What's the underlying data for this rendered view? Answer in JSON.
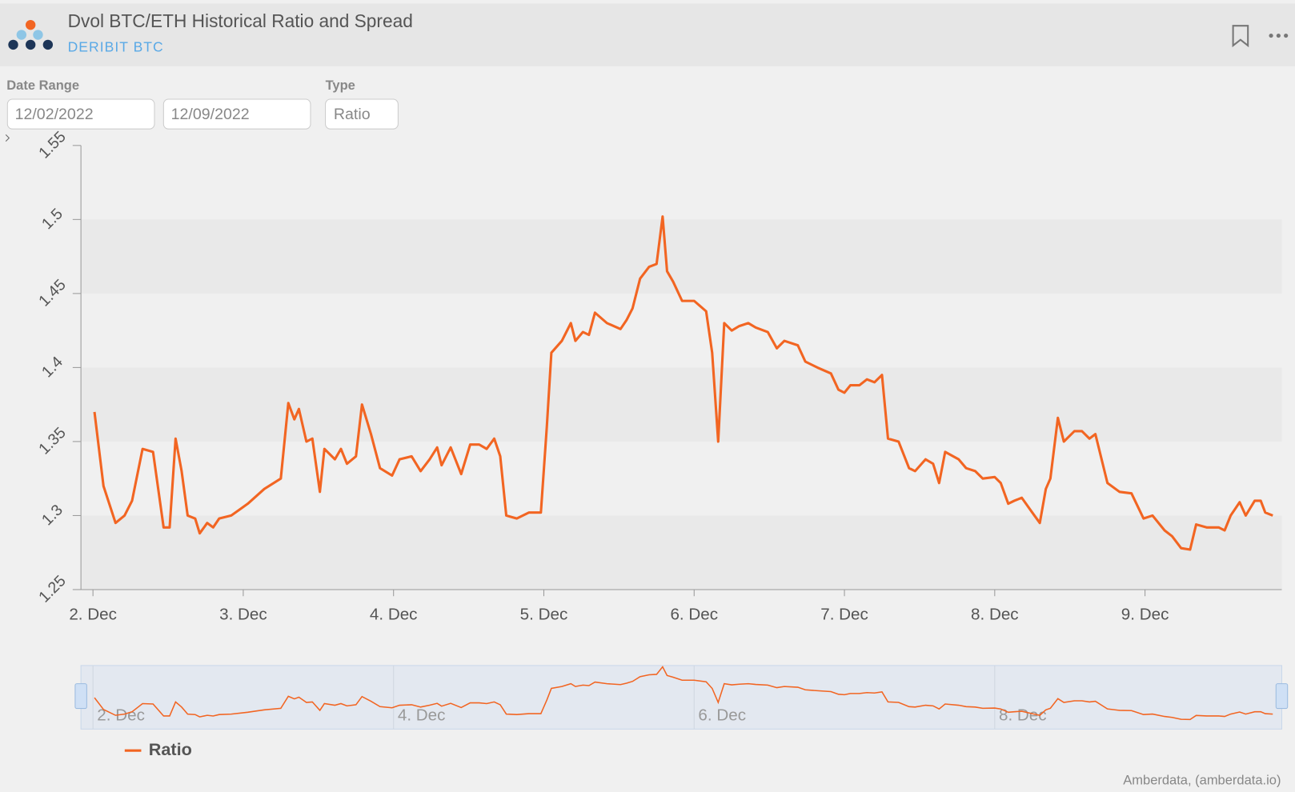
{
  "header": {
    "title": "Dvol BTC/ETH Historical Ratio and Spread",
    "subtitle": "DERIBIT BTC"
  },
  "filters": {
    "date_range_label": "Date Range",
    "start_date": "12/02/2022",
    "end_date": "12/09/2022",
    "type_label": "Type",
    "type_value": "Ratio"
  },
  "credit": "Amberdata, (amberdata.io)",
  "chart_data": {
    "type": "line",
    "x": [
      2.01,
      2.07,
      2.15,
      2.21,
      2.26,
      2.33,
      2.4,
      2.47,
      2.51,
      2.55,
      2.59,
      2.63,
      2.68,
      2.71,
      2.76,
      2.8,
      2.84,
      2.92,
      3.03,
      3.14,
      3.25,
      3.3,
      3.34,
      3.37,
      3.42,
      3.46,
      3.51,
      3.54,
      3.61,
      3.65,
      3.69,
      3.75,
      3.79,
      3.85,
      3.91,
      3.99,
      4.04,
      4.12,
      4.18,
      4.24,
      4.29,
      4.32,
      4.38,
      4.45,
      4.51,
      4.57,
      4.62,
      4.67,
      4.71,
      4.75,
      4.82,
      4.9,
      4.98,
      5.02,
      5.05,
      5.12,
      5.18,
      5.21,
      5.26,
      5.3,
      5.34,
      5.42,
      5.51,
      5.55,
      5.59,
      5.64,
      5.7,
      5.75,
      5.79,
      5.82,
      5.86,
      5.92,
      6.0,
      6.08,
      6.12,
      6.16,
      6.2,
      6.25,
      6.3,
      6.36,
      6.41,
      6.49,
      6.55,
      6.6,
      6.69,
      6.74,
      6.82,
      6.91,
      6.96,
      7.0,
      7.04,
      7.1,
      7.15,
      7.2,
      7.25,
      7.29,
      7.36,
      7.43,
      7.47,
      7.54,
      7.59,
      7.63,
      7.67,
      7.76,
      7.81,
      7.87,
      7.92,
      8.0,
      8.04,
      8.09,
      8.13,
      8.18,
      8.25,
      8.3,
      8.34,
      8.37,
      8.42,
      8.46,
      8.53,
      8.58,
      8.63,
      8.67,
      8.75,
      8.83,
      8.91,
      8.99,
      9.05,
      9.13,
      9.18,
      9.24,
      9.3,
      9.34,
      9.41,
      9.49,
      9.53,
      9.57,
      9.63,
      9.67,
      9.73,
      9.77,
      9.8,
      9.85
    ],
    "series": [
      {
        "name": "Ratio",
        "color": "#f26522",
        "values": [
          1.37,
          1.32,
          1.295,
          1.3,
          1.31,
          1.345,
          1.343,
          1.292,
          1.292,
          1.352,
          1.33,
          1.3,
          1.298,
          1.288,
          1.295,
          1.292,
          1.298,
          1.3,
          1.308,
          1.318,
          1.325,
          1.376,
          1.365,
          1.372,
          1.35,
          1.352,
          1.316,
          1.345,
          1.338,
          1.345,
          1.335,
          1.34,
          1.375,
          1.355,
          1.332,
          1.327,
          1.338,
          1.34,
          1.33,
          1.338,
          1.346,
          1.334,
          1.346,
          1.328,
          1.348,
          1.348,
          1.345,
          1.352,
          1.34,
          1.3,
          1.298,
          1.302,
          1.302,
          1.36,
          1.41,
          1.418,
          1.43,
          1.418,
          1.424,
          1.422,
          1.437,
          1.43,
          1.426,
          1.432,
          1.44,
          1.46,
          1.468,
          1.47,
          1.502,
          1.465,
          1.458,
          1.445,
          1.445,
          1.438,
          1.41,
          1.35,
          1.43,
          1.425,
          1.428,
          1.43,
          1.427,
          1.424,
          1.413,
          1.418,
          1.415,
          1.404,
          1.4,
          1.396,
          1.385,
          1.383,
          1.388,
          1.388,
          1.392,
          1.39,
          1.395,
          1.352,
          1.35,
          1.332,
          1.33,
          1.338,
          1.335,
          1.322,
          1.343,
          1.338,
          1.332,
          1.33,
          1.325,
          1.326,
          1.322,
          1.308,
          1.31,
          1.312,
          1.302,
          1.295,
          1.318,
          1.325,
          1.366,
          1.35,
          1.357,
          1.357,
          1.352,
          1.355,
          1.322,
          1.316,
          1.315,
          1.298,
          1.3,
          1.29,
          1.286,
          1.278,
          1.277,
          1.294,
          1.292,
          1.292,
          1.29,
          1.3,
          1.309,
          1.3,
          1.31,
          1.31,
          1.302,
          1.3
        ]
      }
    ],
    "xlim": [
      1.92,
      9.91
    ],
    "xticks": [
      {
        "value": 2,
        "label": "2. Dec"
      },
      {
        "value": 3,
        "label": "3. Dec"
      },
      {
        "value": 4,
        "label": "4. Dec"
      },
      {
        "value": 5,
        "label": "5. Dec"
      },
      {
        "value": 6,
        "label": "6. Dec"
      },
      {
        "value": 7,
        "label": "7. Dec"
      },
      {
        "value": 8,
        "label": "8. Dec"
      },
      {
        "value": 9,
        "label": "9. Dec"
      }
    ],
    "ylim": [
      1.25,
      1.55
    ],
    "yticks": [
      1.25,
      1.3,
      1.35,
      1.4,
      1.45,
      1.5,
      1.55
    ],
    "navigator_xticks": [
      {
        "value": 2,
        "label": "2. Dec"
      },
      {
        "value": 4,
        "label": "4. Dec"
      },
      {
        "value": 6,
        "label": "6. Dec"
      },
      {
        "value": 8,
        "label": "8. Dec"
      }
    ],
    "legend": "bottom-left"
  }
}
